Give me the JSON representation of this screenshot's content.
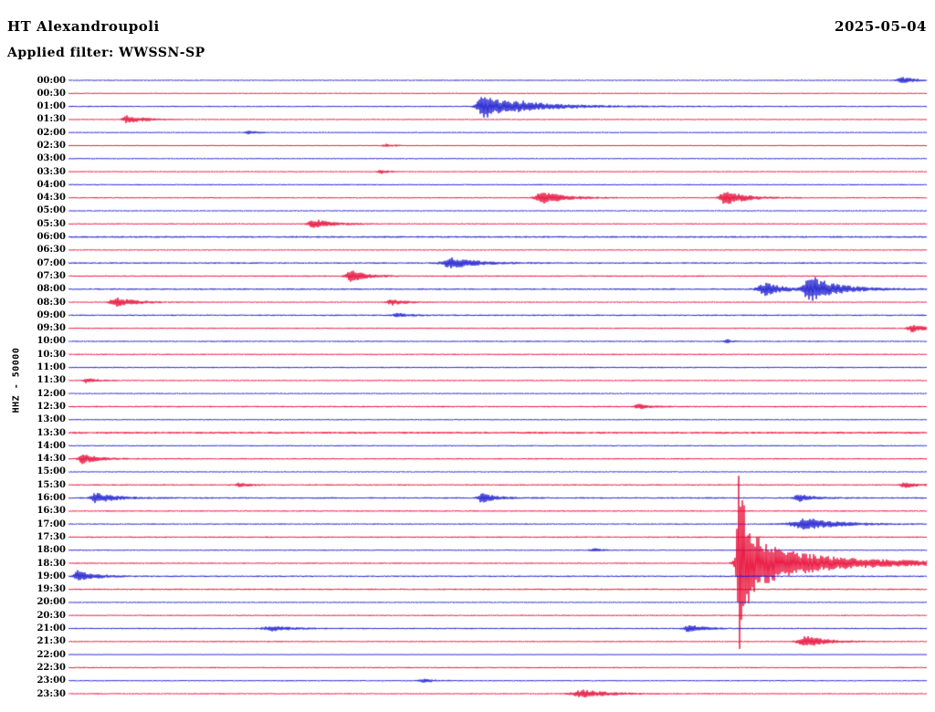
{
  "header": {
    "title": "HT Alexandroupoli",
    "date": "2025-05-04",
    "filter_line": "Applied filter: WWSSN-SP"
  },
  "ylabel": "HHZ - 50000",
  "chart_data": {
    "type": "line",
    "kind": "helicorder-seismogram",
    "title": "HT Alexandroupoli",
    "date": "2025-05-04",
    "filter": "WWSSN-SP",
    "channel_scale_label": "HHZ - 50000",
    "row_interval_minutes": 30,
    "x_range_minutes": [
      0,
      30
    ],
    "legend": "none",
    "grid": false,
    "colors": {
      "blue": "#1515cd",
      "red": "#e60330"
    },
    "rows": [
      {
        "label": "00:00",
        "color": "blue",
        "noise": 0.7,
        "events": [
          {
            "x": 0.973,
            "amp": 3.5,
            "rise": 6,
            "decay": 12
          }
        ]
      },
      {
        "label": "00:30",
        "color": "red",
        "noise": 0.6,
        "events": []
      },
      {
        "label": "01:00",
        "color": "blue",
        "noise": 0.7,
        "events": [
          {
            "x": 0.484,
            "amp": 13,
            "rise": 7,
            "decay": 30
          },
          {
            "x": 0.53,
            "amp": 2.5,
            "rise": 10,
            "decay": 60
          }
        ]
      },
      {
        "label": "01:30",
        "color": "red",
        "noise": 0.6,
        "events": [
          {
            "x": 0.069,
            "amp": 4,
            "rise": 5,
            "decay": 18
          }
        ]
      },
      {
        "label": "02:00",
        "color": "blue",
        "noise": 0.6,
        "events": [
          {
            "x": 0.21,
            "amp": 1.5,
            "rise": 4,
            "decay": 10
          }
        ]
      },
      {
        "label": "02:30",
        "color": "red",
        "noise": 0.6,
        "events": [
          {
            "x": 0.37,
            "amp": 1.5,
            "rise": 4,
            "decay": 10
          }
        ]
      },
      {
        "label": "03:00",
        "color": "blue",
        "noise": 0.65,
        "events": []
      },
      {
        "label": "03:30",
        "color": "red",
        "noise": 0.6,
        "events": [
          {
            "x": 0.365,
            "amp": 1.8,
            "rise": 4,
            "decay": 10
          }
        ]
      },
      {
        "label": "04:00",
        "color": "blue",
        "noise": 0.7,
        "events": []
      },
      {
        "label": "04:30",
        "color": "red",
        "noise": 0.7,
        "events": [
          {
            "x": 0.553,
            "amp": 6.5,
            "rise": 8,
            "decay": 22
          },
          {
            "x": 0.766,
            "amp": 9,
            "rise": 6,
            "decay": 18
          }
        ]
      },
      {
        "label": "05:00",
        "color": "blue",
        "noise": 0.65,
        "events": []
      },
      {
        "label": "05:30",
        "color": "red",
        "noise": 0.7,
        "events": [
          {
            "x": 0.287,
            "amp": 5,
            "rise": 7,
            "decay": 18
          }
        ]
      },
      {
        "label": "06:00",
        "color": "blue",
        "noise": 0.9,
        "events": []
      },
      {
        "label": "06:30",
        "color": "red",
        "noise": 0.7,
        "events": []
      },
      {
        "label": "07:00",
        "color": "blue",
        "noise": 0.9,
        "events": [
          {
            "x": 0.447,
            "amp": 5.5,
            "rise": 10,
            "decay": 25
          }
        ]
      },
      {
        "label": "07:30",
        "color": "red",
        "noise": 0.7,
        "events": [
          {
            "x": 0.33,
            "amp": 6,
            "rise": 6,
            "decay": 16
          }
        ]
      },
      {
        "label": "08:00",
        "color": "blue",
        "noise": 0.9,
        "events": [
          {
            "x": 0.812,
            "amp": 7,
            "rise": 8,
            "decay": 18
          },
          {
            "x": 0.865,
            "amp": 15,
            "rise": 7,
            "decay": 26
          }
        ]
      },
      {
        "label": "08:30",
        "color": "red",
        "noise": 0.7,
        "events": [
          {
            "x": 0.055,
            "amp": 5,
            "rise": 6,
            "decay": 20
          },
          {
            "x": 0.378,
            "amp": 3,
            "rise": 6,
            "decay": 14
          }
        ]
      },
      {
        "label": "09:00",
        "color": "blue",
        "noise": 0.8,
        "events": [
          {
            "x": 0.384,
            "amp": 2,
            "rise": 5,
            "decay": 12
          }
        ]
      },
      {
        "label": "09:30",
        "color": "red",
        "noise": 0.7,
        "events": [
          {
            "x": 0.984,
            "amp": 4,
            "rise": 6,
            "decay": 14
          }
        ]
      },
      {
        "label": "10:00",
        "color": "blue",
        "noise": 0.8,
        "events": [
          {
            "x": 0.766,
            "amp": 2.5,
            "rise": 2,
            "decay": 4
          }
        ]
      },
      {
        "label": "10:30",
        "color": "red",
        "noise": 0.75,
        "events": []
      },
      {
        "label": "11:00",
        "color": "blue",
        "noise": 0.7,
        "events": []
      },
      {
        "label": "11:30",
        "color": "red",
        "noise": 0.7,
        "events": [
          {
            "x": 0.021,
            "amp": 2.5,
            "rise": 4,
            "decay": 10
          }
        ]
      },
      {
        "label": "12:00",
        "color": "blue",
        "noise": 0.7,
        "events": []
      },
      {
        "label": "12:30",
        "color": "red",
        "noise": 0.75,
        "events": [
          {
            "x": 0.665,
            "amp": 2.5,
            "rise": 5,
            "decay": 12
          }
        ]
      },
      {
        "label": "13:00",
        "color": "blue",
        "noise": 0.7,
        "events": []
      },
      {
        "label": "13:30",
        "color": "red",
        "noise": 1.1,
        "events": []
      },
      {
        "label": "14:00",
        "color": "blue",
        "noise": 0.7,
        "events": []
      },
      {
        "label": "14:30",
        "color": "red",
        "noise": 0.75,
        "events": [
          {
            "x": 0.016,
            "amp": 5,
            "rise": 4,
            "decay": 16
          }
        ]
      },
      {
        "label": "15:00",
        "color": "blue",
        "noise": 0.7,
        "events": []
      },
      {
        "label": "15:30",
        "color": "red",
        "noise": 0.8,
        "events": [
          {
            "x": 0.2,
            "amp": 2,
            "rise": 4,
            "decay": 10
          },
          {
            "x": 0.975,
            "amp": 3,
            "rise": 5,
            "decay": 12
          }
        ]
      },
      {
        "label": "16:00",
        "color": "blue",
        "noise": 0.8,
        "events": [
          {
            "x": 0.032,
            "amp": 5.5,
            "rise": 5,
            "decay": 20
          },
          {
            "x": 0.482,
            "amp": 5,
            "rise": 5,
            "decay": 14
          },
          {
            "x": 0.852,
            "amp": 4,
            "rise": 6,
            "decay": 14
          }
        ]
      },
      {
        "label": "16:30",
        "color": "red",
        "noise": 0.8,
        "events": []
      },
      {
        "label": "17:00",
        "color": "blue",
        "noise": 0.8,
        "events": [
          {
            "x": 0.863,
            "amp": 6,
            "rise": 18,
            "decay": 30
          }
        ]
      },
      {
        "label": "17:30",
        "color": "red",
        "noise": 0.75,
        "events": []
      },
      {
        "label": "18:00",
        "color": "blue",
        "noise": 0.7,
        "events": [
          {
            "x": 0.612,
            "amp": 1.8,
            "rise": 4,
            "decay": 8
          }
        ]
      },
      {
        "label": "18:30",
        "color": "red",
        "noise": 0.8,
        "events": [
          {
            "x": 0.782,
            "amp": 100,
            "rise": 2.5,
            "decay": 5
          },
          {
            "x": 0.785,
            "amp": 40,
            "rise": 6,
            "decay": 20
          },
          {
            "x": 0.81,
            "amp": 12,
            "rise": 15,
            "decay": 60
          },
          {
            "x": 0.85,
            "amp": 4,
            "rise": 30,
            "decay": 150
          }
        ]
      },
      {
        "label": "19:00",
        "color": "blue",
        "noise": 0.8,
        "events": [
          {
            "x": 0.011,
            "amp": 6,
            "rise": 4,
            "decay": 18
          }
        ]
      },
      {
        "label": "19:30",
        "color": "red",
        "noise": 0.8,
        "events": []
      },
      {
        "label": "20:00",
        "color": "blue",
        "noise": 0.7,
        "events": []
      },
      {
        "label": "20:30",
        "color": "red",
        "noise": 0.75,
        "events": []
      },
      {
        "label": "21:00",
        "color": "blue",
        "noise": 0.7,
        "events": [
          {
            "x": 0.239,
            "amp": 2.5,
            "rise": 12,
            "decay": 20
          },
          {
            "x": 0.724,
            "amp": 4,
            "rise": 6,
            "decay": 14
          }
        ]
      },
      {
        "label": "21:30",
        "color": "red",
        "noise": 0.75,
        "events": [
          {
            "x": 0.859,
            "amp": 6,
            "rise": 8,
            "decay": 20
          }
        ]
      },
      {
        "label": "22:00",
        "color": "blue",
        "noise": 0.45,
        "events": []
      },
      {
        "label": "22:30",
        "color": "red",
        "noise": 0.7,
        "events": []
      },
      {
        "label": "23:00",
        "color": "blue",
        "noise": 0.7,
        "events": [
          {
            "x": 0.414,
            "amp": 2,
            "rise": 5,
            "decay": 10
          }
        ]
      },
      {
        "label": "23:30",
        "color": "red",
        "noise": 0.75,
        "events": [
          {
            "x": 0.601,
            "amp": 4,
            "rise": 12,
            "decay": 25
          }
        ]
      }
    ]
  }
}
